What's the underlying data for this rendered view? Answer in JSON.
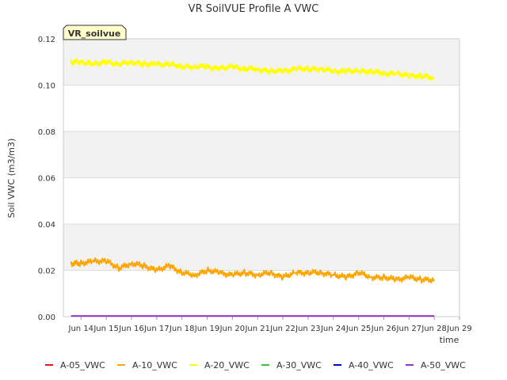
{
  "chart_data": {
    "type": "line",
    "title": "VR SoilVUE Profile A VWC",
    "xlabel": "time",
    "ylabel": "Soil VWC (m3/m3)",
    "badge": "VR_soilvue",
    "xlim": [
      13.3,
      29.0
    ],
    "ylim": [
      0.0,
      0.12
    ],
    "x_ticks": [
      {
        "value": 14,
        "label": "Jun 14"
      },
      {
        "value": 15,
        "label": "Jun 15"
      },
      {
        "value": 16,
        "label": "Jun 16"
      },
      {
        "value": 17,
        "label": "Jun 17"
      },
      {
        "value": 18,
        "label": "Jun 18"
      },
      {
        "value": 19,
        "label": "Jun 19"
      },
      {
        "value": 20,
        "label": "Jun 20"
      },
      {
        "value": 21,
        "label": "Jun 21"
      },
      {
        "value": 22,
        "label": "Jun 22"
      },
      {
        "value": 23,
        "label": "Jun 23"
      },
      {
        "value": 24,
        "label": "Jun 24"
      },
      {
        "value": 25,
        "label": "Jun 25"
      },
      {
        "value": 26,
        "label": "Jun 26"
      },
      {
        "value": 27,
        "label": "Jun 27"
      },
      {
        "value": 28,
        "label": "Jun 28"
      },
      {
        "value": 29,
        "label": "Jun 29"
      }
    ],
    "y_ticks": [
      "0.00",
      "0.02",
      "0.04",
      "0.06",
      "0.08",
      "0.10",
      "0.12"
    ],
    "series": [
      {
        "name": "A-05_VWC",
        "color": "#e41a1c",
        "x": [],
        "y": []
      },
      {
        "name": "A-10_VWC",
        "color": "#ffa500",
        "x": [
          13.6,
          14.0,
          14.5,
          15.0,
          15.5,
          16.0,
          16.5,
          17.0,
          17.5,
          18.0,
          18.5,
          19.0,
          19.5,
          20.0,
          20.5,
          21.0,
          21.5,
          22.0,
          22.5,
          23.0,
          23.5,
          24.0,
          24.5,
          25.0,
          25.5,
          26.0,
          26.5,
          27.0,
          27.5,
          28.0
        ],
        "y": [
          0.023,
          0.023,
          0.024,
          0.024,
          0.021,
          0.023,
          0.022,
          0.02,
          0.022,
          0.019,
          0.018,
          0.02,
          0.019,
          0.018,
          0.019,
          0.018,
          0.019,
          0.017,
          0.019,
          0.019,
          0.019,
          0.018,
          0.017,
          0.019,
          0.017,
          0.017,
          0.016,
          0.017,
          0.016,
          0.016
        ]
      },
      {
        "name": "A-20_VWC",
        "color": "#ffff00",
        "x": [
          13.6,
          14.0,
          14.5,
          15.0,
          15.5,
          16.0,
          16.5,
          17.0,
          17.5,
          18.0,
          18.5,
          19.0,
          19.5,
          20.0,
          20.5,
          21.0,
          21.5,
          22.0,
          22.5,
          23.0,
          23.5,
          24.0,
          24.5,
          25.0,
          25.5,
          26.0,
          26.5,
          27.0,
          27.5,
          28.0
        ],
        "y": [
          0.11,
          0.11,
          0.109,
          0.11,
          0.109,
          0.11,
          0.109,
          0.109,
          0.109,
          0.108,
          0.108,
          0.108,
          0.107,
          0.108,
          0.107,
          0.107,
          0.106,
          0.106,
          0.107,
          0.107,
          0.107,
          0.106,
          0.106,
          0.106,
          0.106,
          0.105,
          0.105,
          0.104,
          0.104,
          0.103
        ]
      },
      {
        "name": "A-30_VWC",
        "color": "#32cd32",
        "x": [],
        "y": []
      },
      {
        "name": "A-40_VWC",
        "color": "#0000cd",
        "x": [],
        "y": []
      },
      {
        "name": "A-50_VWC",
        "color": "#9932cc",
        "x": [
          13.6,
          28.0
        ],
        "y": [
          0.0003,
          0.0003
        ]
      }
    ]
  }
}
